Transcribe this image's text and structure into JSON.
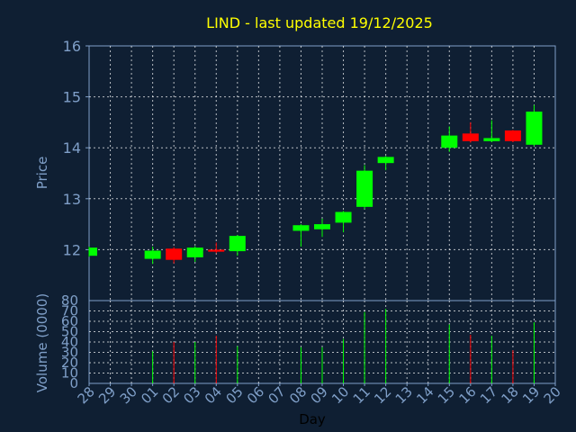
{
  "chart_data": {
    "type": "candlestick",
    "title": "LIND - last updated 19/12/2025",
    "ylabel": "Price",
    "volume_ylabel": "Volume (0000)",
    "xlabel": "Day",
    "ylim": [
      11,
      16
    ],
    "price_ticks": [
      12,
      13,
      14,
      15,
      16
    ],
    "volume_ylim": [
      0,
      80
    ],
    "volume_ticks": [
      0,
      10,
      20,
      30,
      40,
      50,
      60,
      70,
      80
    ],
    "grid": true,
    "x_ticks": [
      "28",
      "29",
      "30",
      "01",
      "02",
      "03",
      "04",
      "05",
      "06",
      "07",
      "08",
      "09",
      "10",
      "11",
      "12",
      "13",
      "14",
      "15",
      "16",
      "17",
      "18",
      "19",
      "20"
    ],
    "candles": [
      {
        "day": "28",
        "open": 11.88,
        "close": 12.04,
        "high": 12.06,
        "low": 11.86,
        "volume": 0
      },
      {
        "day": "01",
        "open": 11.82,
        "close": 11.98,
        "high": 12.06,
        "low": 11.72,
        "volume": 31
      },
      {
        "day": "02",
        "open": 12.02,
        "close": 11.8,
        "high": 12.05,
        "low": 11.73,
        "volume": 40
      },
      {
        "day": "03",
        "open": 11.85,
        "close": 12.04,
        "high": 12.07,
        "low": 11.76,
        "volume": 40
      },
      {
        "day": "04",
        "open": 12.0,
        "close": 11.96,
        "high": 12.14,
        "low": 11.93,
        "volume": 46
      },
      {
        "day": "05",
        "open": 11.97,
        "close": 12.27,
        "high": 12.29,
        "low": 11.88,
        "volume": 36
      },
      {
        "day": "08",
        "open": 12.37,
        "close": 12.48,
        "high": 12.5,
        "low": 12.06,
        "volume": 35
      },
      {
        "day": "09",
        "open": 12.4,
        "close": 12.5,
        "high": 12.61,
        "low": 12.25,
        "volume": 35
      },
      {
        "day": "10",
        "open": 12.53,
        "close": 12.74,
        "high": 12.76,
        "low": 12.34,
        "volume": 43
      },
      {
        "day": "11",
        "open": 12.84,
        "close": 13.55,
        "high": 13.66,
        "low": 12.8,
        "volume": 69
      },
      {
        "day": "12",
        "open": 13.7,
        "close": 13.82,
        "high": 13.84,
        "low": 13.56,
        "volume": 72
      },
      {
        "day": "15",
        "open": 14.0,
        "close": 14.24,
        "high": 14.42,
        "low": 13.92,
        "volume": 57
      },
      {
        "day": "16",
        "open": 14.28,
        "close": 14.13,
        "high": 14.5,
        "low": 14.1,
        "volume": 47
      },
      {
        "day": "17",
        "open": 14.13,
        "close": 14.19,
        "high": 14.54,
        "low": 14.11,
        "volume": 46
      },
      {
        "day": "18",
        "open": 14.34,
        "close": 14.13,
        "high": 14.35,
        "low": 14.11,
        "volume": 32
      },
      {
        "day": "19",
        "open": 14.06,
        "close": 14.71,
        "high": 14.84,
        "low": 14.03,
        "volume": 59
      }
    ],
    "colors": {
      "up": "#00ff00",
      "down": "#ff0000",
      "background": "#0f1f33",
      "grid": "#ffffff",
      "axis": "#7f9fc8",
      "title": "#ffff00"
    }
  }
}
